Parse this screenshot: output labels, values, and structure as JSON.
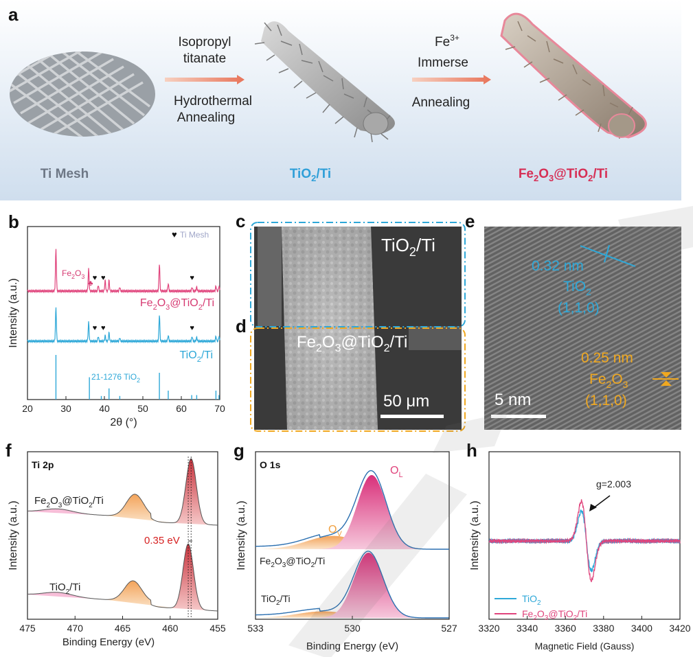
{
  "panel_letters": {
    "a": "a",
    "b": "b",
    "c": "c",
    "d": "d",
    "e": "e",
    "f": "f",
    "g": "g",
    "h": "h"
  },
  "colors": {
    "banner": "#dbe7f3",
    "gray": "#6d7785",
    "blue": "#2f9fd8",
    "pink": "#d63a72",
    "orange": "#f0a040",
    "red": "#d62020",
    "tiO2_line": "#2ea8d8",
    "fe_line": "#e0447c"
  },
  "schematic": {
    "step1": {
      "line1": "Isopropyl",
      "line2": "titanate",
      "line3": "Hydrothermal",
      "line4": "Annealing"
    },
    "step2": {
      "line1": "Fe",
      "line1_sup": "3+",
      "line2": "Immerse",
      "line3": "Annealing"
    },
    "label_ti_mesh": "Ti Mesh",
    "label_tio2": {
      "a": "TiO",
      "sub": "2",
      "b": "/Ti"
    },
    "label_fe": {
      "a": "Fe",
      "s1": "2",
      "b": "O",
      "s2": "3",
      "c": "@TiO",
      "s3": "2",
      "d": "/Ti"
    }
  },
  "micro": {
    "c_label": {
      "a": "TiO",
      "sub": "2",
      "b": "/Ti"
    },
    "d_label": {
      "a": "Fe",
      "s1": "2",
      "b": "O",
      "s2": "3",
      "c": "@TiO",
      "s3": "2",
      "d": "/Ti"
    },
    "scale_c": "50 μm",
    "e_text1": "0.32 nm",
    "e_text2": {
      "a": "TiO",
      "sub": "2"
    },
    "e_text3": "(1,1,0)",
    "e_text4": "0.25 nm",
    "e_text5": {
      "a": "Fe",
      "s1": "2",
      "b": "O",
      "s2": "3"
    },
    "e_text6": "(1,1,0)",
    "scale_e": "5 nm"
  },
  "chart_data": [
    {
      "panel": "b",
      "type": "line",
      "title": "",
      "xlabel": "2θ (°)",
      "ylabel": "Intensity (a.u.)",
      "xlim": [
        20,
        70
      ],
      "xticks": [
        "20",
        "30",
        "40",
        "50",
        "60",
        "70"
      ],
      "legend_marker": "♥",
      "legend_text": "Ti Mesh",
      "fe2o3_marker_label": {
        "a": "Fe",
        "s1": "2",
        "b": "O",
        "s2": "3"
      },
      "series": [
        {
          "name": "Fe2O3@TiO2/Ti",
          "label": {
            "a": "Fe",
            "s1": "2",
            "b": "O",
            "s2": "3",
            "c": "@TiO",
            "s3": "2",
            "d": "/Ti"
          },
          "peaks": [
            [
              27.4,
              0.85
            ],
            [
              35.9,
              0.45
            ],
            [
              38.4,
              0.12
            ],
            [
              40.2,
              0.22
            ],
            [
              41.2,
              0.22
            ],
            [
              44.0,
              0.08
            ],
            [
              54.3,
              0.55
            ],
            [
              56.6,
              0.15
            ],
            [
              62.8,
              0.08
            ],
            [
              64.0,
              0.08
            ],
            [
              69.0,
              0.1
            ],
            [
              69.8,
              0.1
            ]
          ],
          "heart_positions": [
            37.5,
            39.7,
            62.8
          ],
          "fe2o3_position": 36.4
        },
        {
          "name": "TiO2/Ti",
          "label": {
            "a": "TiO",
            "sub": "2",
            "b": "/Ti"
          },
          "peaks": [
            [
              27.4,
              0.7
            ],
            [
              35.9,
              0.4
            ],
            [
              38.4,
              0.1
            ],
            [
              40.2,
              0.12
            ],
            [
              41.2,
              0.18
            ],
            [
              44.0,
              0.07
            ],
            [
              54.3,
              0.55
            ],
            [
              56.6,
              0.12
            ],
            [
              62.8,
              0.1
            ],
            [
              64.0,
              0.08
            ],
            [
              69.0,
              0.1
            ],
            [
              69.8,
              0.1
            ]
          ],
          "heart_positions": [
            37.5,
            39.7,
            62.8
          ]
        },
        {
          "name": "21-1276 TiO2 reference",
          "label": {
            "a": "21-1276 TiO",
            "sub": "2"
          },
          "sticks": [
            [
              27.4,
              1.0
            ],
            [
              36.1,
              0.5
            ],
            [
              39.2,
              0.08
            ],
            [
              41.2,
              0.25
            ],
            [
              44.0,
              0.08
            ],
            [
              54.3,
              0.6
            ],
            [
              56.6,
              0.2
            ],
            [
              62.7,
              0.1
            ],
            [
              64.0,
              0.1
            ],
            [
              69.0,
              0.2
            ],
            [
              69.8,
              0.1
            ]
          ]
        }
      ]
    },
    {
      "panel": "f",
      "type": "line",
      "title": "Ti 2p",
      "xlabel": "Binding Energy (eV)",
      "ylabel": "Intensity (a.u.)",
      "xlim": [
        475,
        455
      ],
      "xticks": [
        "475",
        "470",
        "465",
        "460",
        "455"
      ],
      "shift_label": "0.35 eV",
      "series": [
        {
          "name": "Fe2O3@TiO2/Ti",
          "label": {
            "a": "Fe",
            "s1": "2",
            "b": "O",
            "s2": "3",
            "c": "@TiO",
            "s3": "2",
            "d": "/Ti"
          },
          "peak_ti2p1": {
            "center": 463.7,
            "height": 0.33
          },
          "peak_ti2p3": {
            "center": 457.8,
            "height": 0.95
          }
        },
        {
          "name": "TiO2/Ti",
          "label": {
            "a": "TiO",
            "sub": "2",
            "b": "/Ti"
          },
          "peak_ti2p1": {
            "center": 463.9,
            "height": 0.3
          },
          "peak_ti2p3": {
            "center": 458.1,
            "height": 0.95
          }
        }
      ]
    },
    {
      "panel": "g",
      "type": "line",
      "title": "O 1s",
      "xlabel": "Binding Energy (eV)",
      "ylabel": "Intensity (a.u.)",
      "xlim": [
        533,
        527
      ],
      "xticks": [
        "533",
        "530",
        "527"
      ],
      "label_ov": {
        "a": "O",
        "sub": "V"
      },
      "label_ol": {
        "a": "O",
        "sub": "L"
      },
      "series": [
        {
          "name": "Fe2O3@TiO2/Ti",
          "label": {
            "a": "Fe",
            "s1": "2",
            "b": "O",
            "s2": "3",
            "c": "@TiO",
            "s3": "2",
            "d": "/Ti"
          },
          "ol": {
            "center": 529.4,
            "height": 1.0
          },
          "ov": {
            "center": 530.6,
            "height": 0.18
          }
        },
        {
          "name": "TiO2/Ti",
          "label": {
            "a": "TiO",
            "sub": "2",
            "b": "/Ti"
          },
          "ol": {
            "center": 529.5,
            "height": 1.0
          },
          "ov": {
            "center": 530.9,
            "height": 0.1
          }
        }
      ]
    },
    {
      "panel": "h",
      "type": "line",
      "title": "",
      "xlabel": "Magnetic Field (Gauss)",
      "ylabel": "Intensity (a.u.)",
      "xlim": [
        3320,
        3420
      ],
      "xticks": [
        "3320",
        "3340",
        "3360",
        "3380",
        "3400",
        "3420"
      ],
      "annotation": "g=2.003",
      "series": [
        {
          "name": "TiO2",
          "label": {
            "a": "TiO",
            "sub": "2"
          },
          "amplitude": 0.75
        },
        {
          "name": "Fe2O3@TiO2/Ti",
          "label": {
            "a": "Fe",
            "s1": "2",
            "b": "O",
            "s2": "3",
            "c": "@TiO",
            "s3": "2",
            "d": "/Ti"
          },
          "amplitude": 1.0
        }
      ]
    }
  ]
}
